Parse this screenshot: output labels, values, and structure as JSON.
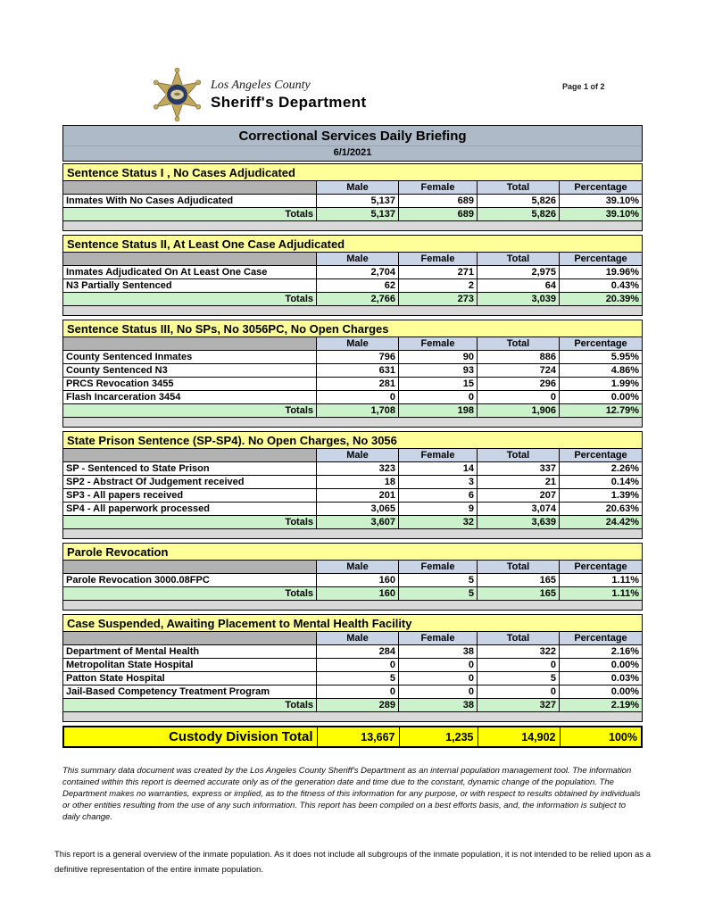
{
  "header": {
    "badge_icon": "sheriff-star-badge",
    "agency_name_line1": "Los Angeles County",
    "agency_name_line2": "Sheriff's Department",
    "page_indicator": "Page 1 of 2"
  },
  "report": {
    "title": "Correctional Services Daily Briefing",
    "date": "6/1/2021",
    "columns": [
      "Male",
      "Female",
      "Total",
      "Percentage"
    ],
    "totals_label": "Totals",
    "sections": [
      {
        "title": "Sentence Status I , No Cases Adjudicated",
        "rows": [
          [
            "Inmates With No Cases Adjudicated",
            "5,137",
            "689",
            "5,826",
            "39.10%"
          ]
        ],
        "totals": [
          "5,137",
          "689",
          "5,826",
          "39.10%"
        ]
      },
      {
        "title": "Sentence Status II, At Least One Case Adjudicated",
        "rows": [
          [
            "Inmates Adjudicated On At Least One Case",
            "2,704",
            "271",
            "2,975",
            "19.96%"
          ],
          [
            "N3 Partially Sentenced",
            "62",
            "2",
            "64",
            "0.43%"
          ]
        ],
        "totals": [
          "2,766",
          "273",
          "3,039",
          "20.39%"
        ]
      },
      {
        "title": "Sentence Status III, No SPs, No 3056PC, No Open Charges",
        "rows": [
          [
            "County Sentenced Inmates",
            "796",
            "90",
            "886",
            "5.95%"
          ],
          [
            "County Sentenced N3",
            "631",
            "93",
            "724",
            "4.86%"
          ],
          [
            "PRCS Revocation 3455",
            "281",
            "15",
            "296",
            "1.99%"
          ],
          [
            "Flash Incarceration 3454",
            "0",
            "0",
            "0",
            "0.00%"
          ]
        ],
        "totals": [
          "1,708",
          "198",
          "1,906",
          "12.79%"
        ]
      },
      {
        "title": "State Prison Sentence (SP-SP4). No Open Charges, No 3056",
        "rows": [
          [
            "SP - Sentenced to State Prison",
            "323",
            "14",
            "337",
            "2.26%"
          ],
          [
            "SP2 - Abstract Of Judgement received",
            "18",
            "3",
            "21",
            "0.14%"
          ],
          [
            "SP3 - All papers received",
            "201",
            "6",
            "207",
            "1.39%"
          ],
          [
            "SP4 - All paperwork processed",
            "3,065",
            "9",
            "3,074",
            "20.63%"
          ]
        ],
        "totals": [
          "3,607",
          "32",
          "3,639",
          "24.42%"
        ]
      },
      {
        "title": "Parole Revocation",
        "rows": [
          [
            "Parole Revocation 3000.08FPC",
            "160",
            "5",
            "165",
            "1.11%"
          ]
        ],
        "totals": [
          "160",
          "5",
          "165",
          "1.11%"
        ]
      },
      {
        "title": "Case Suspended, Awaiting Placement to Mental Health Facility",
        "rows": [
          [
            "Department of Mental Health",
            "284",
            "38",
            "322",
            "2.16%"
          ],
          [
            "Metropolitan State Hospital",
            "0",
            "0",
            "0",
            "0.00%"
          ],
          [
            "Patton State Hospital",
            "5",
            "0",
            "5",
            "0.03%"
          ],
          [
            "Jail-Based Competency Treatment Program",
            "0",
            "0",
            "0",
            "0.00%"
          ]
        ],
        "totals": [
          "289",
          "38",
          "327",
          "2.19%"
        ]
      }
    ],
    "grand_total": {
      "label": "Custody Division Total",
      "values": [
        "13,667",
        "1,235",
        "14,902",
        "100%"
      ]
    }
  },
  "footer": {
    "disclaimer": "This summary data document was created by the Los Angeles County Sheriff's Department as an internal population management tool.  The information contained within this report is deemed accurate only as of the generation date and time due to the constant, dynamic change of the population.  The Department makes no warranties, express or implied, as to the fitness of this information for any purpose, or with respect to results obtained by individuals or other entities resulting from the use of any such information.  This report has been compiled on a best efforts basis, and, the information is subject to daily change.",
    "note": "This report is a general overview of the inmate population.  As it does not include all subgroups of the inmate population, it is not intended to be relied upon as a definitive representation of the entire inmate population."
  },
  "colors": {
    "title_bar": "#AEBAC8",
    "section_header": "#FFFF99",
    "column_header": "#C9D4E6",
    "column_header_first": "#B2B2B2",
    "totals_row": "#CCF2CC",
    "grand_total_row": "#FFFF00",
    "spacer_bar": "#D9D9D9",
    "badge_gold": "#C4A95C",
    "badge_navy": "#273A66"
  }
}
